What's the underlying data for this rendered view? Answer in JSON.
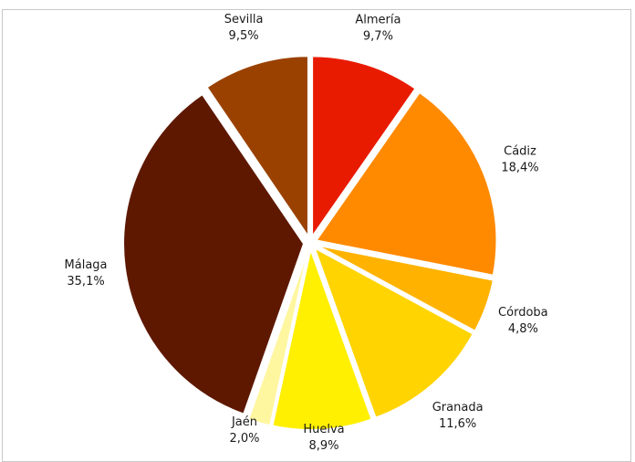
{
  "chart_data": {
    "type": "pie",
    "title": "",
    "start_angle_deg": 0,
    "direction": "clockwise",
    "slices": [
      {
        "label": "Almería",
        "value_label": "9,7%",
        "value": 9.7,
        "color": "#e81b00"
      },
      {
        "label": "Cádiz",
        "value_label": "18,4%",
        "value": 18.4,
        "color": "#ff8a00"
      },
      {
        "label": "Córdoba",
        "value_label": "4,8%",
        "value": 4.8,
        "color": "#ffb300"
      },
      {
        "label": "Granada",
        "value_label": "11,6%",
        "value": 11.6,
        "color": "#ffd400"
      },
      {
        "label": "Huelva",
        "value_label": "8,9%",
        "value": 8.9,
        "color": "#ffef00"
      },
      {
        "label": "Jaén",
        "value_label": "2,0%",
        "value": 2.0,
        "color": "#fff6a0"
      },
      {
        "label": "Málaga",
        "value_label": "35,1%",
        "value": 35.1,
        "color": "#5e1800"
      },
      {
        "label": "Sevilla",
        "value_label": "9,5%",
        "value": 9.5,
        "color": "#9a4100"
      }
    ]
  }
}
